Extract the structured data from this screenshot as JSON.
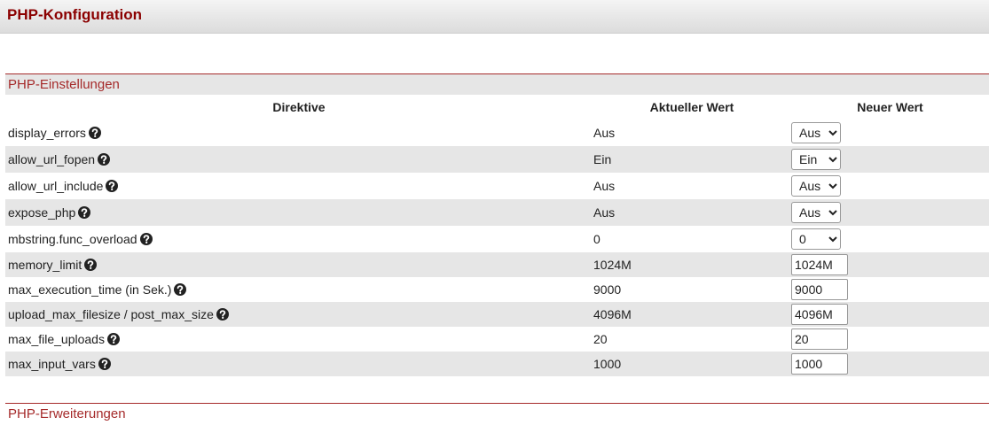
{
  "header": {
    "title": "PHP-Konfiguration"
  },
  "settings_section": {
    "title": "PHP-Einstellungen",
    "columns": [
      "Direktive",
      "Aktueller Wert",
      "Neuer Wert"
    ],
    "rows": [
      {
        "directive": "display_errors",
        "current": "Aus",
        "new_value": "Aus",
        "input": "select"
      },
      {
        "directive": "allow_url_fopen",
        "current": "Ein",
        "new_value": "Ein",
        "input": "select"
      },
      {
        "directive": "allow_url_include",
        "current": "Aus",
        "new_value": "Aus",
        "input": "select"
      },
      {
        "directive": "expose_php",
        "current": "Aus",
        "new_value": "Aus",
        "input": "select"
      },
      {
        "directive": "mbstring.func_overload",
        "current": "0",
        "new_value": "0",
        "input": "select"
      },
      {
        "directive": "memory_limit",
        "current": "1024M",
        "new_value": "1024M",
        "input": "text"
      },
      {
        "directive": "max_execution_time (in Sek.)",
        "current": "9000",
        "new_value": "9000",
        "input": "text"
      },
      {
        "directive": "upload_max_filesize / post_max_size",
        "current": "4096M",
        "new_value": "4096M",
        "input": "text"
      },
      {
        "directive": "max_file_uploads",
        "current": "20",
        "new_value": "20",
        "input": "text"
      },
      {
        "directive": "max_input_vars",
        "current": "1000",
        "new_value": "1000",
        "input": "text"
      }
    ]
  },
  "extensions_section": {
    "title": "PHP-Erweiterungen"
  }
}
